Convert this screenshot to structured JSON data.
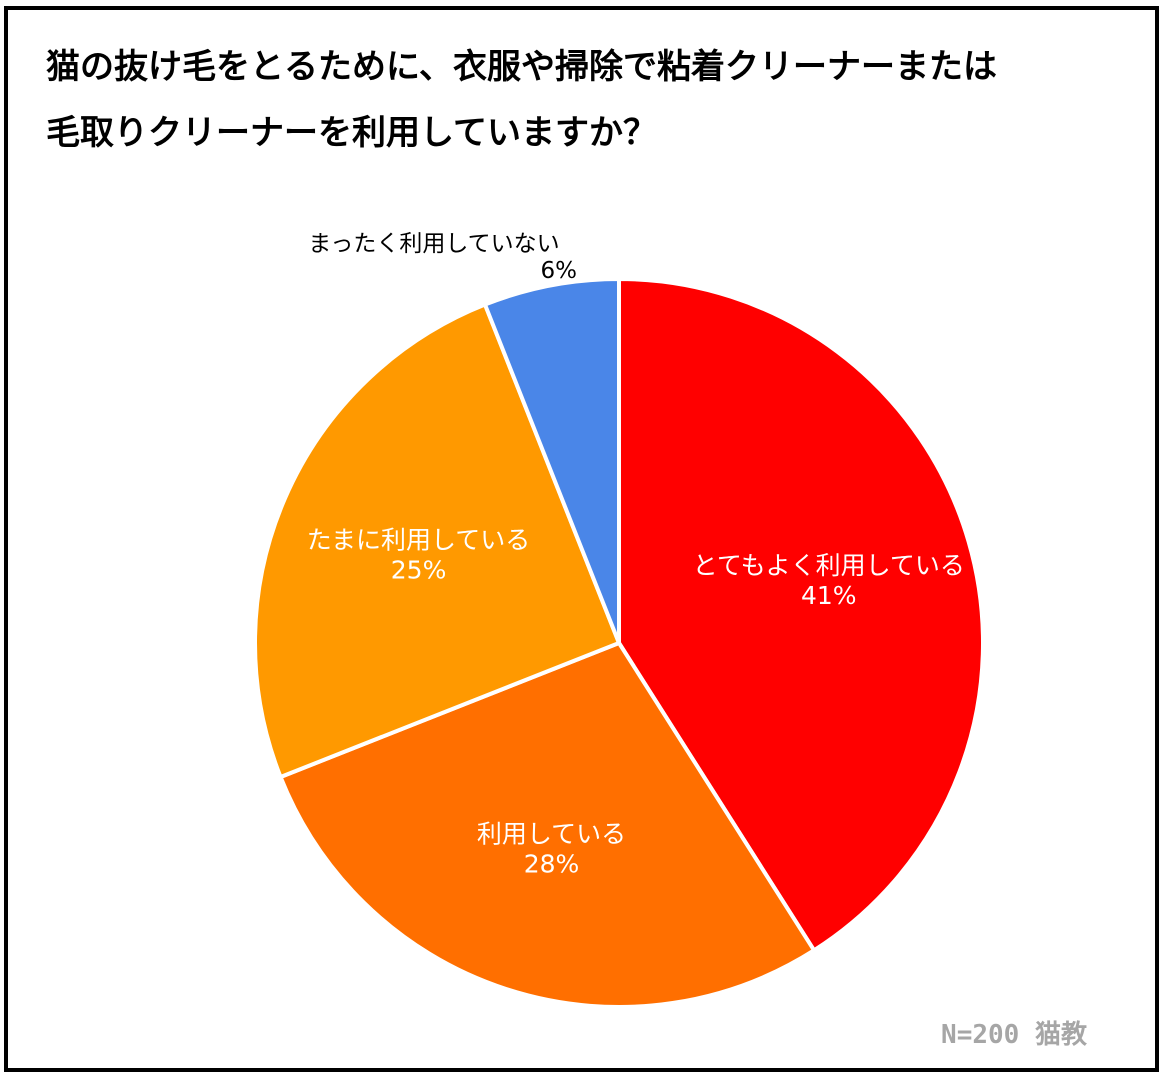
{
  "chart_data": {
    "type": "pie",
    "title_lines": [
      "猫の抜け毛をとるために、衣服や掃除で粘着クリーナーまたは",
      "毛取りクリーナーを利用していますか？"
    ],
    "slices": [
      {
        "label": "とてもよく利用している",
        "value": 41,
        "value_label": "41%",
        "color": "#ff0000",
        "label_position": "inside"
      },
      {
        "label": "利用している",
        "value": 28,
        "value_label": "28%",
        "color": "#ff6f00",
        "label_position": "inside"
      },
      {
        "label": "たまに利用している",
        "value": 25,
        "value_label": "25%",
        "color": "#ff9900",
        "label_position": "inside"
      },
      {
        "label": "まったく利用していない",
        "value": 6,
        "value_label": "6%",
        "color": "#4a86e8",
        "label_position": "outside"
      }
    ],
    "start_angle_deg": 0,
    "direction": "clockwise",
    "separator_color": "#ffffff"
  },
  "footnote": {
    "sample": "N=200",
    "source": "猫教",
    "color": "#a6a6a6"
  }
}
